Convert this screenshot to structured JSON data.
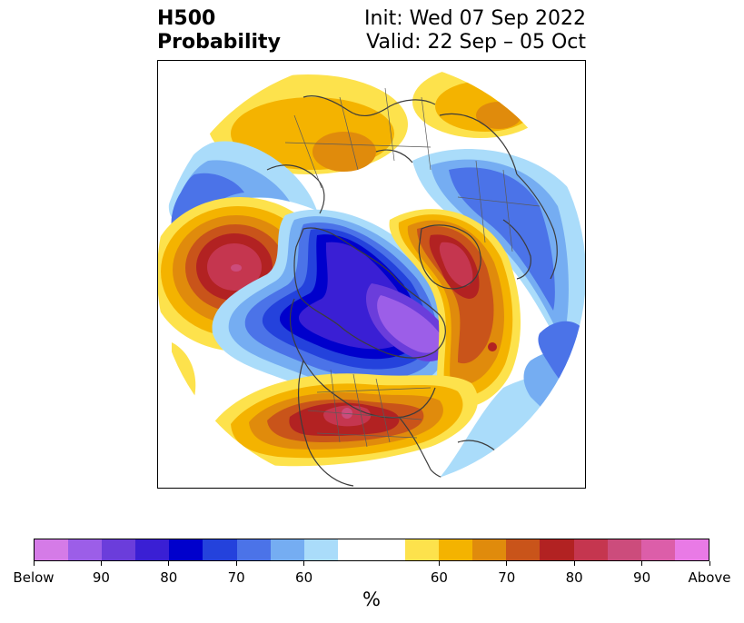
{
  "title": {
    "left_line1": "H500",
    "left_line2": "Probability",
    "right_line1": "Init: Wed 07 Sep 2022",
    "right_line2": "Valid: 22 Sep – 05 Oct"
  },
  "colorbar": {
    "unit": "%",
    "colors": [
      "#d57be7",
      "#9c5ee8",
      "#6b3ddb",
      "#3a1fd4",
      "#0000cc",
      "#2442dc",
      "#4b73e8",
      "#75adf2",
      "#aadcfa",
      "#ffffff",
      "#fde24c",
      "#f4b300",
      "#e08b0c",
      "#c9541a",
      "#b22222",
      "#c5364f",
      "#cc4c7c",
      "#dc5ea9",
      "#e97ae6"
    ],
    "labels": [
      "Below",
      "90",
      "80",
      "70",
      "60",
      "60",
      "70",
      "80",
      "90",
      "Above"
    ]
  },
  "map": {
    "projection": "north polar stereographic",
    "features": [
      {
        "name": "north-pacific-anomaly",
        "sign": "above",
        "max_percent": 90
      },
      {
        "name": "alaska-canada-anomaly",
        "sign": "below",
        "max_percent": 90
      },
      {
        "name": "north-atlantic-anomaly",
        "sign": "above",
        "max_percent": 90
      },
      {
        "name": "eastern-us-anomaly",
        "sign": "above",
        "max_percent": 90
      },
      {
        "name": "siberia-anomaly",
        "sign": "above",
        "max_percent": 70
      },
      {
        "name": "europe-anomaly",
        "sign": "above",
        "max_percent": 70
      },
      {
        "name": "scandinavia-anomaly",
        "sign": "below",
        "max_percent": 70
      }
    ]
  }
}
